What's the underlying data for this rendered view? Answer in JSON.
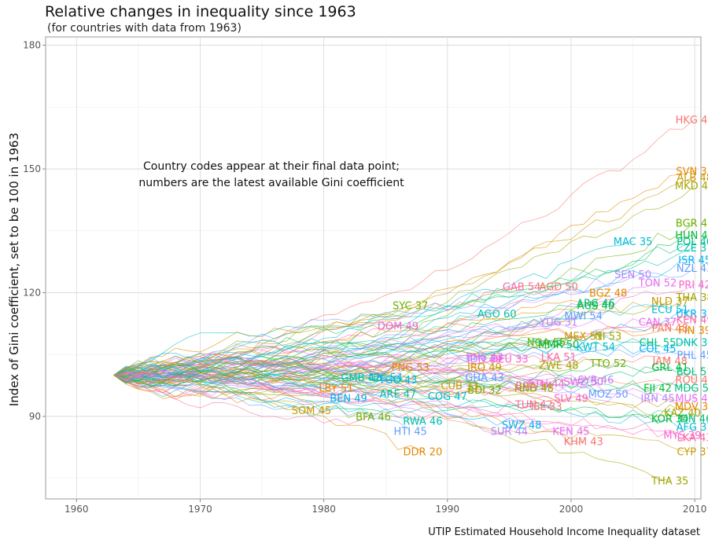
{
  "page": {
    "title": "Relative changes in inequality since 1963",
    "subtitle": "(for countries with data from 1963)",
    "caption": "UTIP Estimated Household Income Inequality dataset",
    "annotation_line1": "Country codes appear at their final data point;",
    "annotation_line2": "numbers are the latest available Gini coefficient"
  },
  "chart_data": {
    "type": "line",
    "title": "Relative changes in inequality since 1963",
    "subtitle": "(for countries with data from 1963)",
    "xlabel": "",
    "ylabel": "Index of Gini coefficient, set to be 100 in 1963",
    "xlim": [
      1957.5,
      2010.5
    ],
    "ylim": [
      70,
      182
    ],
    "x_ticks": [
      1960,
      1970,
      1980,
      1990,
      2000,
      2010
    ],
    "y_ticks": [
      90,
      120,
      150,
      180
    ],
    "grid": true,
    "legend": "none",
    "baseline": {
      "x": 1963,
      "y": 100
    },
    "palette": [
      "#F8766D",
      "#E58700",
      "#C99800",
      "#A3A500",
      "#6BB100",
      "#00BA38",
      "#00BF7D",
      "#00C0AF",
      "#00BCD8",
      "#00B0F6",
      "#619CFF",
      "#B983FF",
      "#E76BF3",
      "#FD61D1",
      "#FF67A4"
    ],
    "series": [
      {
        "label": "HKG 44",
        "x": 2010,
        "y": 162
      },
      {
        "label": "SVN 33",
        "x": 2010,
        "y": 149.5
      },
      {
        "label": "ALB 48",
        "x": 2010,
        "y": 148
      },
      {
        "label": "MKD 45",
        "x": 2010,
        "y": 146
      },
      {
        "label": "BGR 41",
        "x": 2010,
        "y": 137
      },
      {
        "label": "HUN 40",
        "x": 2010,
        "y": 134
      },
      {
        "label": "POL 40",
        "x": 2010,
        "y": 132.5
      },
      {
        "label": "CZE 37",
        "x": 2010,
        "y": 131
      },
      {
        "label": "MAC 35",
        "x": 2005,
        "y": 132.5
      },
      {
        "label": "ISR 45",
        "x": 2010,
        "y": 128
      },
      {
        "label": "NZL 43",
        "x": 2010,
        "y": 126
      },
      {
        "label": "SEN 50",
        "x": 2005,
        "y": 124.5
      },
      {
        "label": "TON 52",
        "x": 2007,
        "y": 122.5
      },
      {
        "label": "PRI 42",
        "x": 2010,
        "y": 122
      },
      {
        "label": "GAB 54",
        "x": 1996,
        "y": 121.5
      },
      {
        "label": "AGD 50",
        "x": 1999,
        "y": 121.5
      },
      {
        "label": "BGZ 48",
        "x": 2003,
        "y": 120
      },
      {
        "label": "NLD 37",
        "x": 2008,
        "y": 118
      },
      {
        "label": "THA 38",
        "x": 2010,
        "y": 119
      },
      {
        "label": "SYC 37",
        "x": 1987,
        "y": 117
      },
      {
        "label": "AUS 40",
        "x": 2002,
        "y": 117
      },
      {
        "label": "ARG 46",
        "x": 2002,
        "y": 117.5
      },
      {
        "label": "AGO 60",
        "x": 1994,
        "y": 115
      },
      {
        "label": "ECU 51",
        "x": 2008,
        "y": 116
      },
      {
        "label": "UKR 37",
        "x": 2010,
        "y": 115
      },
      {
        "label": "MWI 54",
        "x": 2001,
        "y": 114.5
      },
      {
        "label": "YUG 31",
        "x": 1999,
        "y": 113
      },
      {
        "label": "CAN 37",
        "x": 2007,
        "y": 113
      },
      {
        "label": "DOM 49",
        "x": 1986,
        "y": 112
      },
      {
        "label": "KEN 49",
        "x": 2010,
        "y": 113.5
      },
      {
        "label": "PAN 48",
        "x": 2008,
        "y": 111.5
      },
      {
        "label": "FIN 39",
        "x": 2010,
        "y": 111
      },
      {
        "label": "MEX 51",
        "x": 2001,
        "y": 109.5
      },
      {
        "label": "NI 53",
        "x": 2003,
        "y": 109.5
      },
      {
        "label": "NGA 55",
        "x": 1998,
        "y": 108
      },
      {
        "label": "MMR 50",
        "x": 1999,
        "y": 107.5
      },
      {
        "label": "CHL 55",
        "x": 2007,
        "y": 108
      },
      {
        "label": "DNK 33",
        "x": 2010,
        "y": 108
      },
      {
        "label": "KWT 54",
        "x": 2002,
        "y": 107
      },
      {
        "label": "COL 45",
        "x": 2007,
        "y": 106.5
      },
      {
        "label": "PHL 45",
        "x": 2010,
        "y": 105
      },
      {
        "label": "BHS 43",
        "x": 1993,
        "y": 104.5
      },
      {
        "label": "IDN 49",
        "x": 1993,
        "y": 104
      },
      {
        "label": "DEU 33",
        "x": 1995,
        "y": 104
      },
      {
        "label": "LKA 51",
        "x": 1999,
        "y": 104.5
      },
      {
        "label": "JAM 48",
        "x": 2008,
        "y": 103.5
      },
      {
        "label": "PNG 53",
        "x": 1987,
        "y": 102
      },
      {
        "label": "IRQ 49",
        "x": 1993,
        "y": 102
      },
      {
        "label": "ZWE 48",
        "x": 1999,
        "y": 102.5
      },
      {
        "label": "TTO 52",
        "x": 2003,
        "y": 103
      },
      {
        "label": "GRL 41",
        "x": 2008,
        "y": 102
      },
      {
        "label": "BOL 51",
        "x": 2010,
        "y": 101
      },
      {
        "label": "GMB 42",
        "x": 1983,
        "y": 99.5
      },
      {
        "label": "NIC 54",
        "x": 1985,
        "y": 99.5
      },
      {
        "label": "TGO 43",
        "x": 1986,
        "y": 99
      },
      {
        "label": "GHA 43",
        "x": 1993,
        "y": 99.5
      },
      {
        "label": "SYR 46",
        "x": 2002,
        "y": 99
      },
      {
        "label": "SWZ 50",
        "x": 2001,
        "y": 98.5
      },
      {
        "label": "ETH 44",
        "x": 1998,
        "y": 98
      },
      {
        "label": "BRA 54",
        "x": 1997,
        "y": 97.5
      },
      {
        "label": "ROU 48",
        "x": 2010,
        "y": 99
      },
      {
        "label": "LBY 51",
        "x": 1981,
        "y": 97
      },
      {
        "label": "CUB 33",
        "x": 1991,
        "y": 97.5
      },
      {
        "label": "HND 48",
        "x": 1997,
        "y": 97
      },
      {
        "label": "BDI 32",
        "x": 1993,
        "y": 96.5
      },
      {
        "label": "FJI 42",
        "x": 2007,
        "y": 97
      },
      {
        "label": "MDG 50",
        "x": 2010,
        "y": 97
      },
      {
        "label": "ARE 47",
        "x": 1986,
        "y": 95.5
      },
      {
        "label": "COG 47",
        "x": 1990,
        "y": 95
      },
      {
        "label": "BEN 49",
        "x": 1982,
        "y": 94.5
      },
      {
        "label": "MOZ 50",
        "x": 2003,
        "y": 95.5
      },
      {
        "label": "IRN 45",
        "x": 2007,
        "y": 94.5
      },
      {
        "label": "MUS 40",
        "x": 2010,
        "y": 94.5
      },
      {
        "label": "SLV 49",
        "x": 2000,
        "y": 94.5
      },
      {
        "label": "TUN 42",
        "x": 1997,
        "y": 93
      },
      {
        "label": "ISL 33",
        "x": 1998,
        "y": 92.5
      },
      {
        "label": "MDV 38",
        "x": 2010,
        "y": 92.5
      },
      {
        "label": "SOM 45",
        "x": 1979,
        "y": 91.5
      },
      {
        "label": "KAZ 40",
        "x": 2009,
        "y": 91
      },
      {
        "label": "BFA 46",
        "x": 1984,
        "y": 90
      },
      {
        "label": "KOR 34",
        "x": 2008,
        "y": 89.5
      },
      {
        "label": "IDN 46",
        "x": 2010,
        "y": 89.5
      },
      {
        "label": "RWA 46",
        "x": 1988,
        "y": 89
      },
      {
        "label": "AFG 37",
        "x": 2010,
        "y": 87.5
      },
      {
        "label": "SWZ 48",
        "x": 1996,
        "y": 88
      },
      {
        "label": "HTI 45",
        "x": 1987,
        "y": 86.5
      },
      {
        "label": "SUR 44",
        "x": 1995,
        "y": 86.5
      },
      {
        "label": "KEN 45",
        "x": 2000,
        "y": 86.5
      },
      {
        "label": "MYS 39",
        "x": 2009,
        "y": 85.5
      },
      {
        "label": "LKA 43",
        "x": 2010,
        "y": 85
      },
      {
        "label": "KHM 43",
        "x": 2001,
        "y": 84
      },
      {
        "label": "DDR 20",
        "x": 1988,
        "y": 81.5
      },
      {
        "label": "CYP 37",
        "x": 2010,
        "y": 81.5
      },
      {
        "label": "THA 35",
        "x": 2008,
        "y": 74.5
      }
    ]
  }
}
